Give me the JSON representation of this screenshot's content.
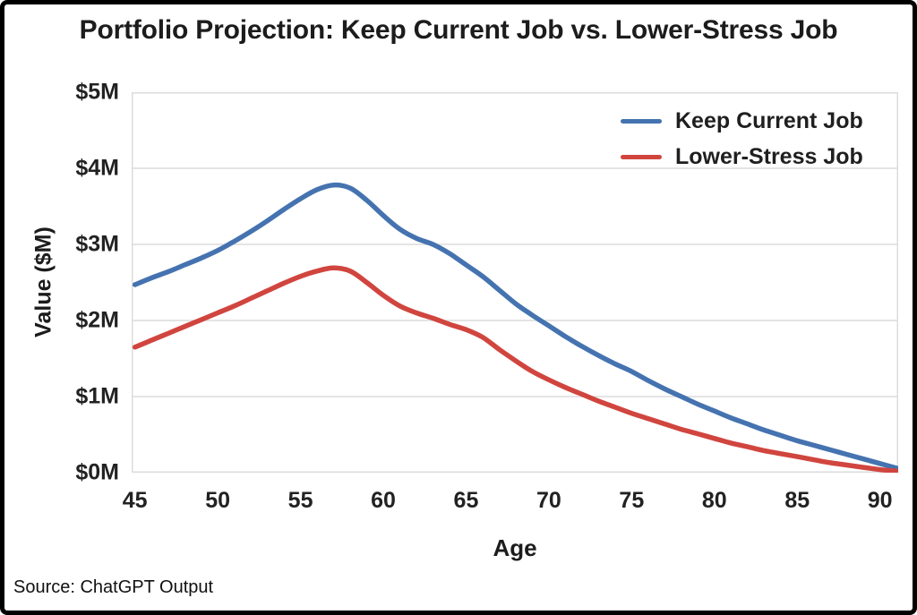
{
  "title": "Portfolio Projection: Keep Current Job vs. Lower-Stress Job",
  "source_note": "Source: ChatGPT Output",
  "chart_data": {
    "type": "line",
    "title": "Portfolio Projection: Keep Current Job vs. Lower-Stress Job",
    "xlabel": "Age",
    "ylabel": "Value ($M)",
    "xlim": [
      44.8,
      91.1
    ],
    "ylim": [
      0,
      5
    ],
    "xticks": [
      45,
      50,
      55,
      60,
      65,
      70,
      75,
      80,
      85,
      90
    ],
    "yticks": [
      0,
      1,
      2,
      3,
      4,
      5
    ],
    "ytick_labels": [
      "$0M",
      "$1M",
      "$2M",
      "$3M",
      "$4M",
      "$5M"
    ],
    "grid": true,
    "grid_color": "#dcdcdc",
    "legend_position": "upper right",
    "x": [
      45,
      46,
      47,
      48,
      49,
      50,
      51,
      52,
      53,
      54,
      55,
      56,
      57,
      58,
      59,
      60,
      61,
      62,
      63,
      64,
      65,
      66,
      67,
      68,
      69,
      70,
      71,
      72,
      73,
      74,
      75,
      76,
      77,
      78,
      79,
      80,
      81,
      82,
      83,
      84,
      85,
      86,
      87,
      88,
      89,
      90,
      91
    ],
    "series": [
      {
        "name": "Keep Current Job",
        "color": "#4573b0",
        "values": [
          2.47,
          2.56,
          2.64,
          2.73,
          2.82,
          2.92,
          3.04,
          3.17,
          3.31,
          3.46,
          3.6,
          3.72,
          3.78,
          3.74,
          3.58,
          3.38,
          3.2,
          3.08,
          3.0,
          2.88,
          2.73,
          2.58,
          2.4,
          2.22,
          2.07,
          1.93,
          1.79,
          1.66,
          1.54,
          1.43,
          1.33,
          1.21,
          1.1,
          1.0,
          0.9,
          0.81,
          0.72,
          0.64,
          0.56,
          0.49,
          0.42,
          0.36,
          0.3,
          0.24,
          0.18,
          0.12,
          0.06
        ]
      },
      {
        "name": "Lower-Stress Job",
        "color": "#d1453f",
        "values": [
          1.65,
          1.74,
          1.83,
          1.92,
          2.01,
          2.1,
          2.19,
          2.29,
          2.39,
          2.49,
          2.58,
          2.65,
          2.69,
          2.65,
          2.5,
          2.33,
          2.19,
          2.1,
          2.03,
          1.95,
          1.88,
          1.78,
          1.62,
          1.47,
          1.33,
          1.22,
          1.12,
          1.03,
          0.94,
          0.86,
          0.78,
          0.71,
          0.64,
          0.57,
          0.51,
          0.45,
          0.39,
          0.34,
          0.29,
          0.25,
          0.21,
          0.17,
          0.13,
          0.1,
          0.07,
          0.04,
          0.02
        ]
      }
    ]
  }
}
